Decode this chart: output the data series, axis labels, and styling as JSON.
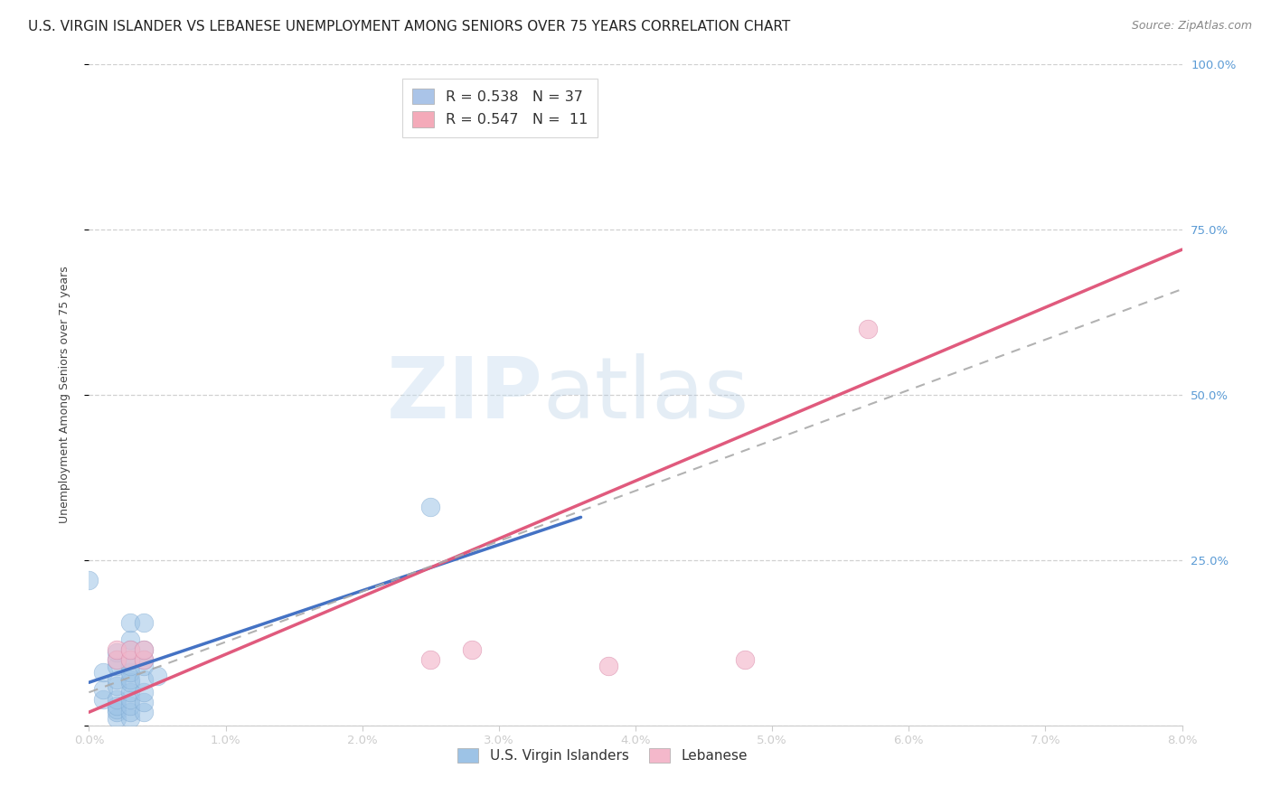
{
  "title": "U.S. VIRGIN ISLANDER VS LEBANESE UNEMPLOYMENT AMONG SENIORS OVER 75 YEARS CORRELATION CHART",
  "source": "Source: ZipAtlas.com",
  "ylabel_label": "Unemployment Among Seniors over 75 years",
  "xlim": [
    0.0,
    0.08
  ],
  "ylim": [
    0.0,
    1.0
  ],
  "watermark_zip": "ZIP",
  "watermark_atlas": "atlas",
  "legend_entries": [
    {
      "label": "R = 0.538   N = 37",
      "facecolor": "#aac4e8"
    },
    {
      "label": "R = 0.547   N =  11",
      "facecolor": "#f4aab9"
    }
  ],
  "legend_bottom": [
    "U.S. Virgin Islanders",
    "Lebanese"
  ],
  "blue_scatter": [
    [
      0.001,
      0.04
    ],
    [
      0.001,
      0.055
    ],
    [
      0.001,
      0.08
    ],
    [
      0.002,
      0.01
    ],
    [
      0.002,
      0.02
    ],
    [
      0.002,
      0.025
    ],
    [
      0.002,
      0.03
    ],
    [
      0.002,
      0.04
    ],
    [
      0.002,
      0.06
    ],
    [
      0.002,
      0.07
    ],
    [
      0.002,
      0.09
    ],
    [
      0.002,
      0.1
    ],
    [
      0.002,
      0.11
    ],
    [
      0.003,
      0.01
    ],
    [
      0.003,
      0.02
    ],
    [
      0.003,
      0.03
    ],
    [
      0.003,
      0.04
    ],
    [
      0.003,
      0.05
    ],
    [
      0.003,
      0.065
    ],
    [
      0.003,
      0.07
    ],
    [
      0.003,
      0.08
    ],
    [
      0.003,
      0.09
    ],
    [
      0.003,
      0.1
    ],
    [
      0.003,
      0.115
    ],
    [
      0.003,
      0.13
    ],
    [
      0.003,
      0.155
    ],
    [
      0.004,
      0.02
    ],
    [
      0.004,
      0.035
    ],
    [
      0.004,
      0.05
    ],
    [
      0.004,
      0.07
    ],
    [
      0.004,
      0.09
    ],
    [
      0.004,
      0.1
    ],
    [
      0.004,
      0.115
    ],
    [
      0.004,
      0.155
    ],
    [
      0.005,
      0.075
    ],
    [
      0.0,
      0.22
    ],
    [
      0.025,
      0.33
    ]
  ],
  "pink_scatter": [
    [
      0.002,
      0.1
    ],
    [
      0.002,
      0.115
    ],
    [
      0.003,
      0.1
    ],
    [
      0.003,
      0.115
    ],
    [
      0.004,
      0.1
    ],
    [
      0.004,
      0.115
    ],
    [
      0.025,
      0.1
    ],
    [
      0.028,
      0.115
    ],
    [
      0.048,
      0.1
    ],
    [
      0.057,
      0.6
    ],
    [
      0.038,
      0.09
    ]
  ],
  "blue_line": {
    "x": [
      0.0,
      0.036
    ],
    "y": [
      0.065,
      0.315
    ]
  },
  "pink_line": {
    "x": [
      0.0,
      0.08
    ],
    "y": [
      0.02,
      0.72
    ]
  },
  "dashed_line": {
    "x": [
      0.0,
      0.08
    ],
    "y": [
      0.05,
      0.66
    ]
  },
  "blue_color": "#4472c4",
  "pink_color": "#e05a7d",
  "scatter_blue_color": "#9dc3e6",
  "scatter_pink_color": "#f4b8cb",
  "dashed_color": "#aaaaaa",
  "title_fontsize": 11,
  "axis_label_fontsize": 9,
  "tick_fontsize": 9.5,
  "source_fontsize": 9
}
